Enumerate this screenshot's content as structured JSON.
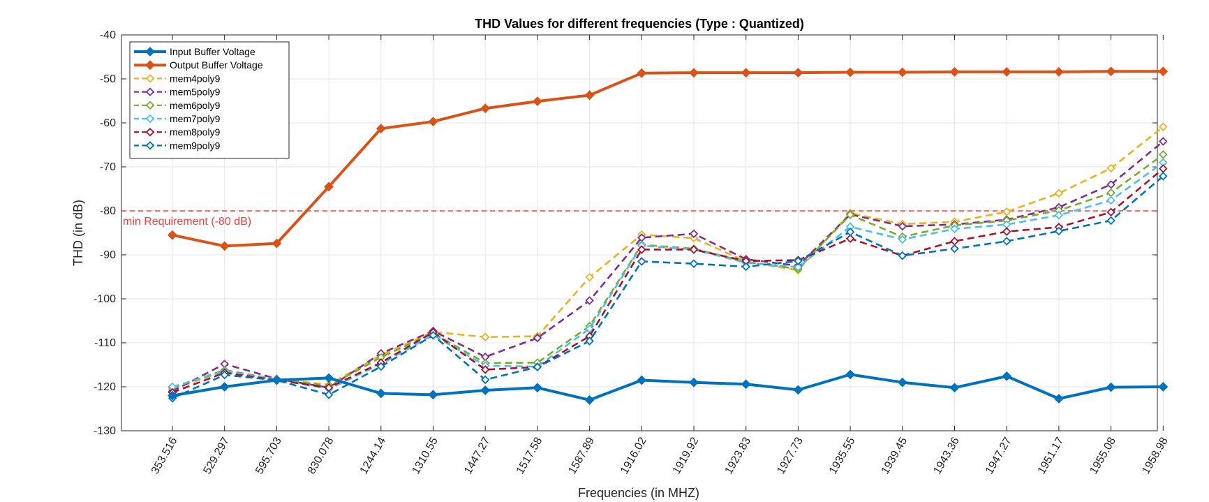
{
  "chart_data": {
    "type": "line",
    "title": "THD Values for different frequencies (Type : Quantized)",
    "xlabel": "Frequencies (in MHZ)",
    "ylabel": "THD (in dB)",
    "ylim": [
      -130,
      -40
    ],
    "yticks": [
      -130,
      -120,
      -110,
      -100,
      -90,
      -80,
      -70,
      -60,
      -50,
      -40
    ],
    "grid": true,
    "legend_position": "top-left",
    "categories": [
      "353.516",
      "529.297",
      "595.703",
      "830.078",
      "1244.14",
      "1310.55",
      "1447.27",
      "1517.58",
      "1587.89",
      "1916.02",
      "1919.92",
      "1923.83",
      "1927.73",
      "1935.55",
      "1939.45",
      "1943.36",
      "1947.27",
      "1951.17",
      "1955.08",
      "1958.98"
    ],
    "series": [
      {
        "name": "Input Buffer Voltage",
        "color": "#0072BD",
        "style": "solid",
        "marker": "filled-diamond",
        "values": [
          -122,
          -120,
          -118.5,
          -118,
          -121.5,
          -121.8,
          -120.8,
          -120.2,
          -123,
          -118.5,
          -119,
          -119.4,
          -120.7,
          -117.2,
          -119,
          -120.2,
          -117.6,
          -122.7,
          -120.1,
          -120
        ]
      },
      {
        "name": "Output Buffer Voltage",
        "color": "#D95319",
        "style": "solid",
        "marker": "filled-diamond",
        "values": [
          -85.5,
          -88,
          -87.4,
          -74.5,
          -61.3,
          -59.7,
          -56.7,
          -55.1,
          -53.7,
          -48.7,
          -48.6,
          -48.6,
          -48.6,
          -48.5,
          -48.5,
          -48.4,
          -48.4,
          -48.4,
          -48.3,
          -48.3
        ]
      },
      {
        "name": "mem4poly9",
        "color": "#EDB120",
        "style": "dashed",
        "marker": "open-diamond",
        "values": [
          -120.5,
          -116.5,
          -118.3,
          -119.5,
          -112.8,
          -107.5,
          -108.7,
          -108.5,
          -95.1,
          -85.4,
          -86.2,
          -91.5,
          -93.5,
          -80.5,
          -83,
          -82.5,
          -80.2,
          -76,
          -70.3,
          -60.9
        ]
      },
      {
        "name": "mem5poly9",
        "color": "#7E2F8E",
        "style": "dashed",
        "marker": "open-diamond",
        "values": [
          -121,
          -114.8,
          -118.2,
          -120.2,
          -112.4,
          -107.3,
          -113.2,
          -108.9,
          -100.4,
          -86.1,
          -85.2,
          -91,
          -92.5,
          -80.8,
          -83.5,
          -83.1,
          -82,
          -79.2,
          -74,
          -64.2
        ]
      },
      {
        "name": "mem6poly9",
        "color": "#77AC30",
        "style": "dashed",
        "marker": "open-diamond",
        "values": [
          -120.2,
          -116.2,
          -118.3,
          -119.8,
          -113.3,
          -107.8,
          -114.6,
          -114.5,
          -106.2,
          -87.7,
          -88.6,
          -91.6,
          -93.2,
          -80.9,
          -85.9,
          -83.3,
          -82.2,
          -79.9,
          -75.9,
          -67.2
        ]
      },
      {
        "name": "mem7poly9",
        "color": "#4DBEEE",
        "style": "dashed",
        "marker": "open-diamond",
        "values": [
          -120,
          -116.5,
          -118.3,
          -120.5,
          -114.8,
          -108.2,
          -115.2,
          -115.4,
          -106.8,
          -87.9,
          -88.8,
          -91.8,
          -92.8,
          -83.6,
          -86.5,
          -84.1,
          -83.1,
          -81,
          -77.6,
          -69
        ]
      },
      {
        "name": "mem8poly9",
        "color": "#A2142F",
        "style": "dashed",
        "marker": "open-diamond",
        "values": [
          -121.3,
          -116.8,
          -118.5,
          -120.2,
          -114.5,
          -107.6,
          -116.1,
          -115.5,
          -108.5,
          -88.8,
          -88.8,
          -91.4,
          -91.2,
          -86.3,
          -90.2,
          -86.9,
          -84.7,
          -83.7,
          -80.3,
          -70.4
        ]
      },
      {
        "name": "mem9poly9",
        "color": "#0072BD",
        "style": "dashed",
        "marker": "open-diamond",
        "values": [
          -122.6,
          -117.3,
          -118.5,
          -121.8,
          -115.4,
          -108.3,
          -118.4,
          -115.5,
          -109.6,
          -91.5,
          -92,
          -92.7,
          -91.4,
          -84.8,
          -90.2,
          -88.6,
          -86.9,
          -84.6,
          -82.2,
          -72.1
        ]
      }
    ],
    "reference_line": {
      "y": -80,
      "label": "min Requirement (-80 dB)",
      "color": "#FF3B3B"
    }
  }
}
